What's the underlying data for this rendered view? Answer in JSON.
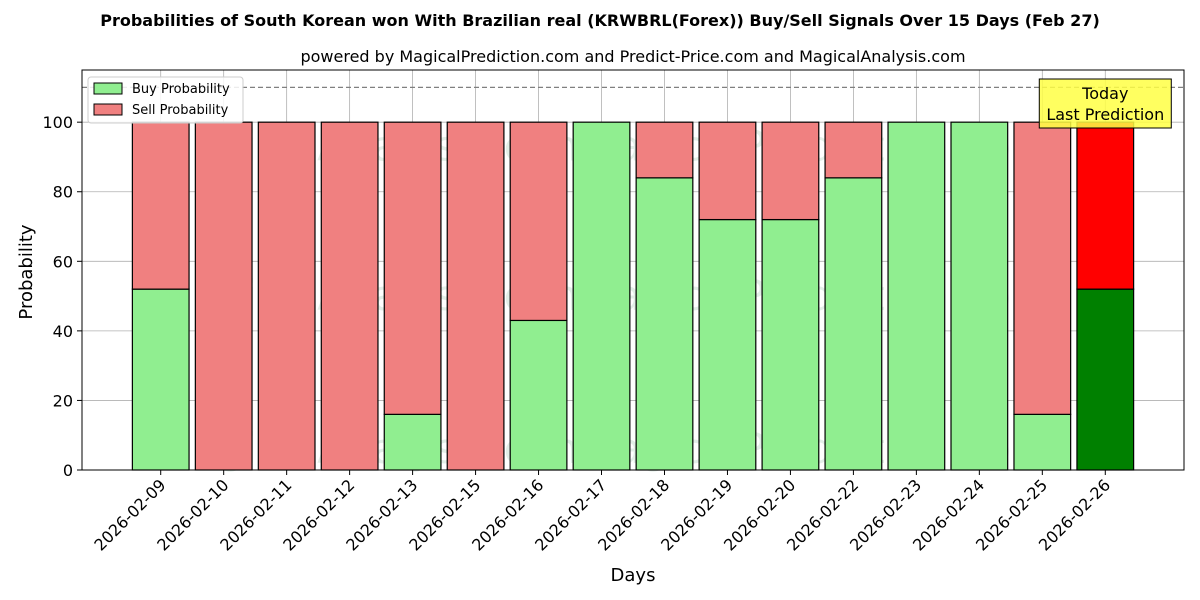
{
  "chart_data": {
    "type": "bar",
    "stacked": true,
    "title": "Probabilities of South Korean won With Brazilian real (KRWBRL(Forex)) Buy/Sell Signals Over 15 Days (Feb 27)",
    "subtitle": "powered by MagicalPrediction.com and Predict-Price.com and MagicalAnalysis.com",
    "xlabel": "Days",
    "ylabel": "Probability",
    "ylim": [
      0,
      115
    ],
    "yticks": [
      0,
      20,
      40,
      60,
      80,
      100
    ],
    "reference_line": 110,
    "grid": true,
    "legend_position": "top-left",
    "categories": [
      "2026-02-09",
      "2026-02-10",
      "2026-02-11",
      "2026-02-12",
      "2026-02-13",
      "2026-02-15",
      "2026-02-16",
      "2026-02-17",
      "2026-02-18",
      "2026-02-19",
      "2026-02-20",
      "2026-02-22",
      "2026-02-23",
      "2026-02-24",
      "2026-02-25",
      "2026-02-26"
    ],
    "series": [
      {
        "name": "Buy Probability",
        "color": "#90ee90",
        "highlight_color": "#008000",
        "values": [
          52,
          0,
          0,
          0,
          16,
          0,
          43,
          100,
          84,
          72,
          72,
          84,
          100,
          100,
          16,
          52
        ]
      },
      {
        "name": "Sell Probability",
        "color": "#f08080",
        "highlight_color": "#ff0000",
        "values": [
          48,
          100,
          100,
          100,
          84,
          100,
          57,
          0,
          16,
          28,
          28,
          16,
          0,
          0,
          84,
          48
        ]
      }
    ],
    "highlight_index": 15,
    "annotation": {
      "line1": "Today",
      "line2": "Last Prediction",
      "bg_color": "#ffff44"
    },
    "watermarks": [
      "MagicalAnalysis.com",
      "MagicalPrediction.com"
    ]
  }
}
